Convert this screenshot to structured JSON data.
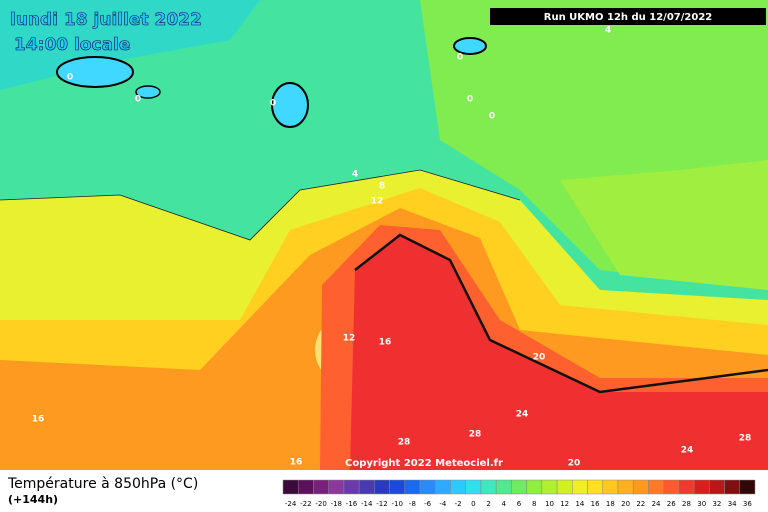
{
  "header": {
    "title": "lundi 18 juillet 2022",
    "time": "14:00 locale",
    "run": "Run UKMO 12h du 12/07/2022"
  },
  "copyright": "Copyright 2022 Meteociel.fr",
  "legend": {
    "title": "Température à 850hPa (°C)",
    "lead": "(+144h)"
  },
  "contour_labels": [
    0,
    0,
    0,
    0,
    0,
    0,
    4,
    4,
    8,
    12,
    12,
    16,
    16,
    16,
    20,
    20,
    24,
    24,
    28,
    28,
    28
  ],
  "colorbar": {
    "labels": [
      -24,
      -22,
      -20,
      -18,
      -16,
      -14,
      -12,
      -10,
      -8,
      -6,
      -4,
      -2,
      0,
      2,
      4,
      6,
      8,
      10,
      12,
      14,
      16,
      18,
      20,
      22,
      24,
      26,
      28,
      30,
      32,
      34,
      36
    ],
    "colors": [
      "#3a0a3a",
      "#5a105a",
      "#7a207a",
      "#8a3a9a",
      "#6a3aaa",
      "#4a3ab0",
      "#2a3ac0",
      "#1a4ad8",
      "#1a6aee",
      "#2a8af8",
      "#30aaff",
      "#30c8ff",
      "#30e0f0",
      "#40e8c0",
      "#50e890",
      "#70ec60",
      "#90ee40",
      "#b0f030",
      "#d0f020",
      "#f0f020",
      "#ffe020",
      "#ffc820",
      "#ffb020",
      "#ff9820",
      "#ff7a28",
      "#ff5a30",
      "#f03a30",
      "#d82020",
      "#b81818",
      "#801010",
      "#300808"
    ]
  }
}
